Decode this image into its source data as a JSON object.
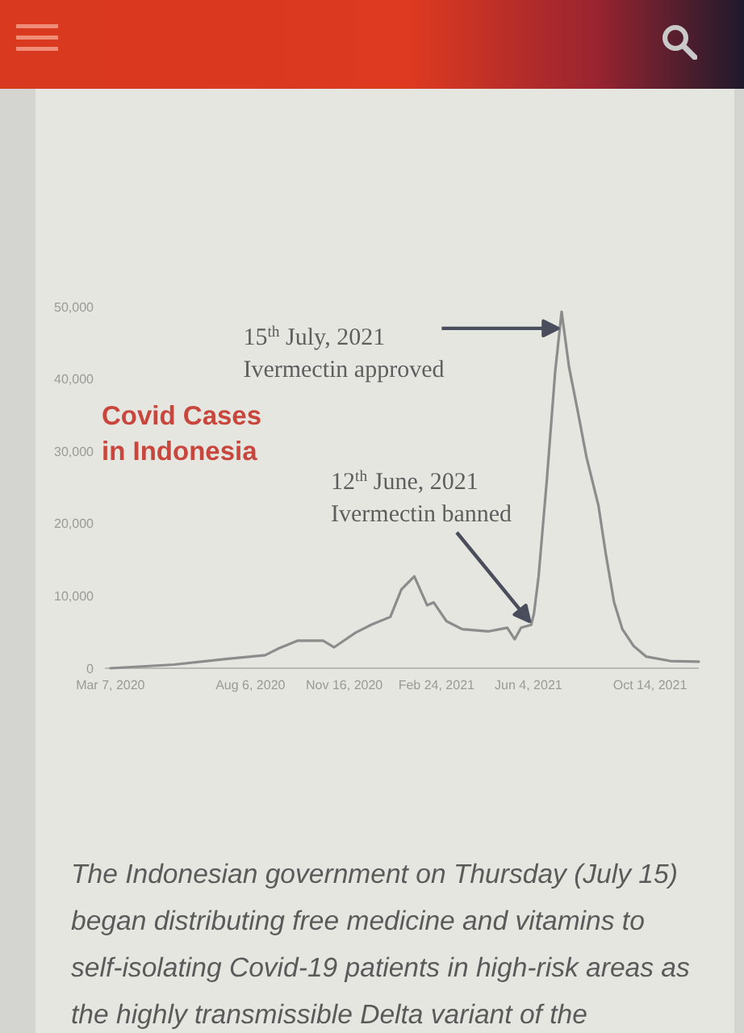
{
  "chart_data": {
    "type": "line",
    "title": "Covid Cases in Indonesia",
    "x": [
      "2020-03-07",
      "2020-05-15",
      "2020-07-12",
      "2020-08-22",
      "2020-09-05",
      "2020-09-26",
      "2020-10-24",
      "2020-11-05",
      "2020-11-28",
      "2020-12-15",
      "2021-01-05",
      "2021-01-17",
      "2021-01-31",
      "2021-02-14",
      "2021-02-21",
      "2021-03-07",
      "2021-03-24",
      "2021-04-22",
      "2021-05-12",
      "2021-05-20",
      "2021-05-27",
      "2021-06-07",
      "2021-06-10",
      "2021-06-15",
      "2021-06-24",
      "2021-07-03",
      "2021-07-10",
      "2021-07-18",
      "2021-07-27",
      "2021-08-06",
      "2021-08-19",
      "2021-08-27",
      "2021-09-05",
      "2021-09-14",
      "2021-09-26",
      "2021-10-10",
      "2021-11-05",
      "2021-12-06"
    ],
    "values": [
      0,
      500,
      1300,
      1800,
      2700,
      3800,
      3800,
      2900,
      4900,
      6000,
      7100,
      10900,
      12700,
      8700,
      9100,
      6500,
      5400,
      5100,
      5600,
      4000,
      5600,
      6000,
      7600,
      12700,
      26100,
      41000,
      49300,
      41700,
      35900,
      29200,
      22500,
      15800,
      9100,
      5400,
      3100,
      1600,
      1000,
      900
    ],
    "color": "#8c8c8c",
    "xlim": [
      "2020-03-01",
      "2021-12-06"
    ],
    "xticks": [
      {
        "value": "2020-03-07",
        "label": "Mar 7, 2020"
      },
      {
        "value": "2020-08-06",
        "label": "Aug 6, 2020"
      },
      {
        "value": "2020-11-16",
        "label": "Nov 16, 2020"
      },
      {
        "value": "2021-02-24",
        "label": "Feb 24, 2021"
      },
      {
        "value": "2021-06-04",
        "label": "Jun 4, 2021"
      },
      {
        "value": "2021-10-14",
        "label": "Oct 14, 2021"
      }
    ],
    "ylim": [
      0,
      50000
    ],
    "yticks": [
      0,
      {
        "value": 10000,
        "label": "10,000"
      },
      {
        "value": 20000,
        "label": "20,000"
      },
      {
        "value": 30000,
        "label": "30,000"
      },
      {
        "value": 40000,
        "label": "40,000"
      },
      {
        "value": 50000,
        "label": "50,000"
      }
    ],
    "annotations": [
      {
        "text": "15$^{th}$ July, 2021\nIvermectin approved",
        "x": "2021-07-06",
        "y": 47000
      },
      {
        "text": "12$^{th}$ June, 2021\nIvermectin banned",
        "x": "2021-06-05",
        "y": 6500
      },
      "The Indonesian government on Thursday (July 15) began distributing free medicine and vitamins to self-isolating Covid-19 patients in high-risk areas as the highly transmissible Delta variant of the"
    ]
  }
}
